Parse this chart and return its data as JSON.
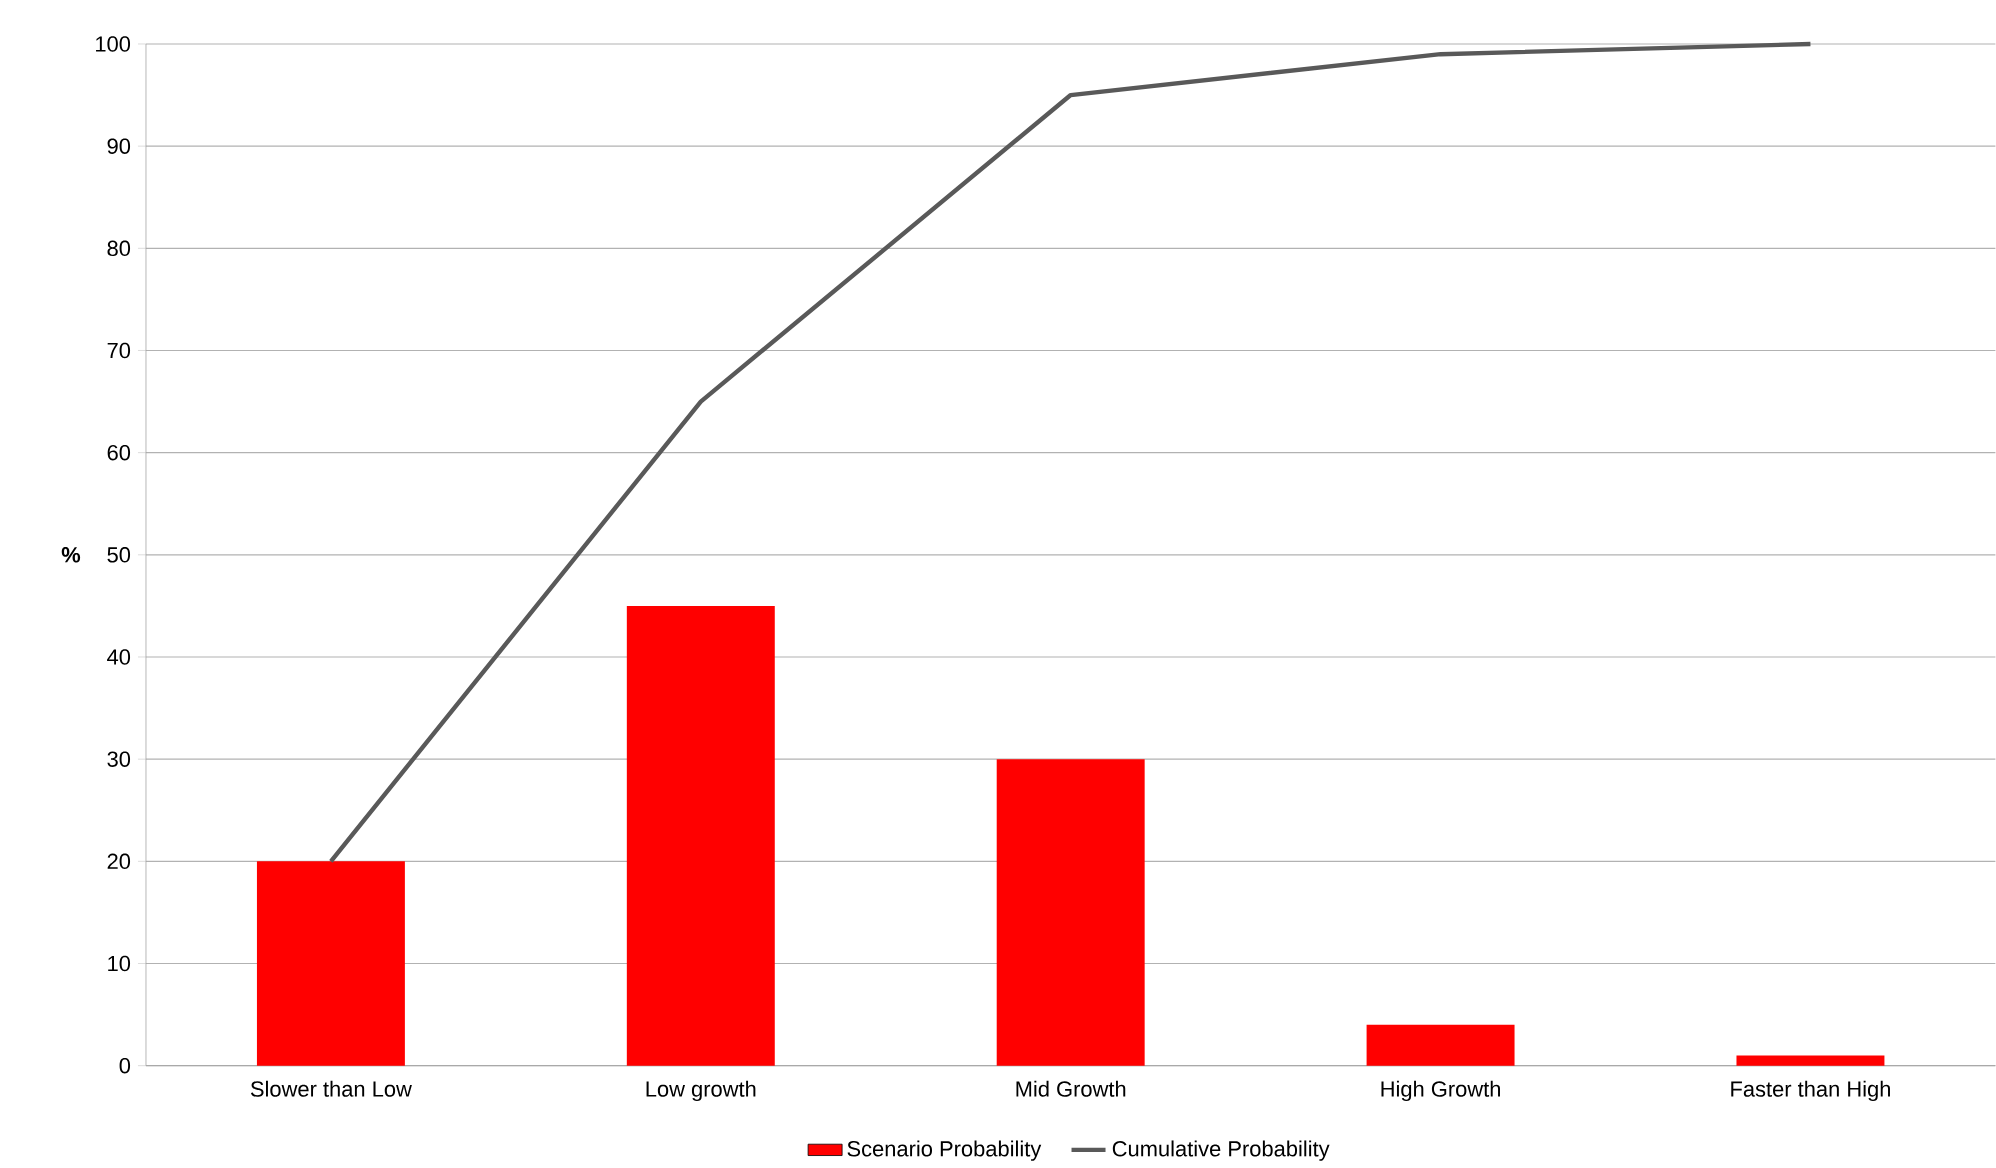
{
  "chart_data": {
    "type": "bar",
    "ylabel": "%",
    "categories": [
      "Slower than Low",
      "Low growth",
      "Mid Growth",
      "High Growth",
      "Faster than High"
    ],
    "series": [
      {
        "name": "Scenario Probability",
        "color": "#ff0000",
        "values": [
          20,
          45,
          30,
          4,
          1
        ]
      },
      {
        "name": "Cumulative Probability",
        "type": "line",
        "color": "#595959",
        "values": [
          20,
          65,
          95,
          99,
          100
        ]
      }
    ],
    "ylim": [
      0,
      100
    ],
    "yticks": [
      0,
      10,
      20,
      30,
      40,
      50,
      60,
      70,
      80,
      90,
      100
    ],
    "grid": "y",
    "legend": "bottom",
    "marker": "none",
    "line_style": "solid"
  }
}
